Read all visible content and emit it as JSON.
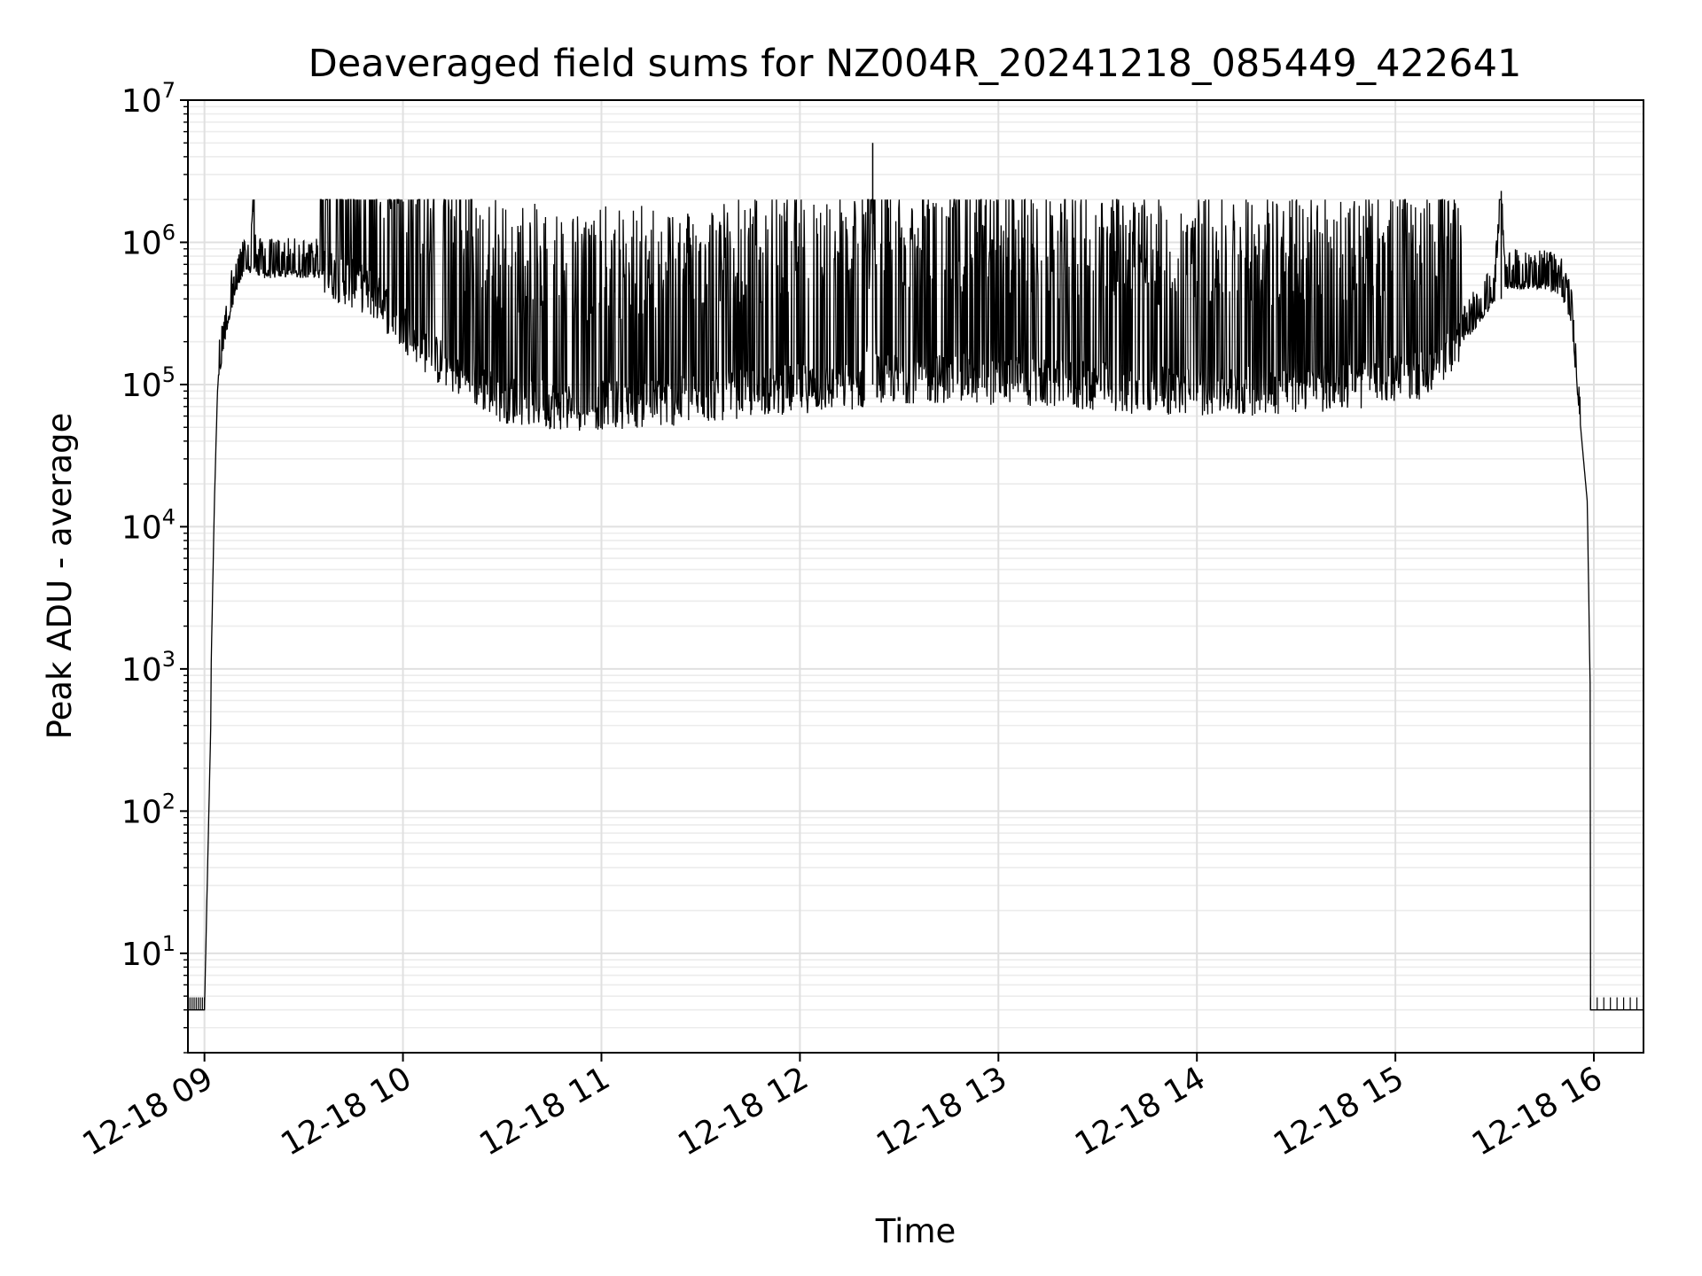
{
  "chart_data": {
    "type": "line",
    "title": "Deaveraged field sums for NZ004R_20241218_085449_422641",
    "xlabel": "Time",
    "ylabel": "Peak ADU - average",
    "yscale": "log",
    "ylim": [
      2,
      10000000
    ],
    "xlim": [
      "2024-12-18 08:55",
      "2024-12-18 16:15"
    ],
    "grid": true,
    "line_color": "#000000",
    "x_ticks": [
      {
        "value": "2024-12-18 09:00",
        "label": "12-18 09"
      },
      {
        "value": "2024-12-18 10:00",
        "label": "12-18 10"
      },
      {
        "value": "2024-12-18 11:00",
        "label": "12-18 11"
      },
      {
        "value": "2024-12-18 12:00",
        "label": "12-18 12"
      },
      {
        "value": "2024-12-18 13:00",
        "label": "12-18 13"
      },
      {
        "value": "2024-12-18 14:00",
        "label": "12-18 14"
      },
      {
        "value": "2024-12-18 15:00",
        "label": "12-18 15"
      },
      {
        "value": "2024-12-18 16:00",
        "label": "12-18 16"
      }
    ],
    "y_ticks": [
      {
        "value": 10,
        "base": "10",
        "exp": "1"
      },
      {
        "value": 100,
        "base": "10",
        "exp": "2"
      },
      {
        "value": 1000,
        "base": "10",
        "exp": "3"
      },
      {
        "value": 10000,
        "base": "10",
        "exp": "4"
      },
      {
        "value": 100000,
        "base": "10",
        "exp": "5"
      },
      {
        "value": 1000000,
        "base": "10",
        "exp": "6"
      },
      {
        "value": 10000000,
        "base": "10",
        "exp": "7"
      }
    ],
    "series": [
      {
        "x": [
          "2024-12-18 08:55",
          "2024-12-18 09:00",
          "2024-12-18 09:02",
          "2024-12-18 09:02",
          "2024-12-18 09:03",
          "2024-12-18 09:04",
          "2024-12-18 09:06",
          "2024-12-18 09:08",
          "2024-12-18 09:10",
          "2024-12-18 09:12",
          "2024-12-18 09:14",
          "2024-12-18 09:15",
          "2024-12-18 09:15",
          "2024-12-18 09:16",
          "2024-12-18 09:30",
          "2024-12-18 09:38",
          "2024-12-18 09:50",
          "2024-12-18 10:10",
          "2024-12-18 10:30",
          "2024-12-18 10:50",
          "2024-12-18 11:20",
          "2024-12-18 11:50",
          "2024-12-18 12:20",
          "2024-12-18 12:22",
          "2024-12-18 12:23",
          "2024-12-18 12:50",
          "2024-12-18 13:20",
          "2024-12-18 13:50",
          "2024-12-18 14:20",
          "2024-12-18 14:50",
          "2024-12-18 15:10",
          "2024-12-18 15:20",
          "2024-12-18 15:30",
          "2024-12-18 15:32",
          "2024-12-18 15:33",
          "2024-12-18 15:45",
          "2024-12-18 15:50",
          "2024-12-18 15:53",
          "2024-12-18 15:56",
          "2024-12-18 15:58",
          "2024-12-18 15:59",
          "2024-12-18 15:59",
          "2024-12-18 16:15"
        ],
        "y": [
          4,
          4,
          500,
          1000,
          15000,
          100000,
          200000,
          350000,
          500000,
          600000,
          650000,
          2000000,
          700000,
          600000,
          600000,
          600000,
          450000,
          150000,
          80000,
          70000,
          75000,
          90000,
          100000,
          5000000,
          110000,
          110000,
          100000,
          90000,
          90000,
          100000,
          120000,
          200000,
          400000,
          2300000,
          500000,
          500000,
          450000,
          300000,
          50000,
          15000,
          500,
          4,
          4
        ]
      }
    ]
  }
}
